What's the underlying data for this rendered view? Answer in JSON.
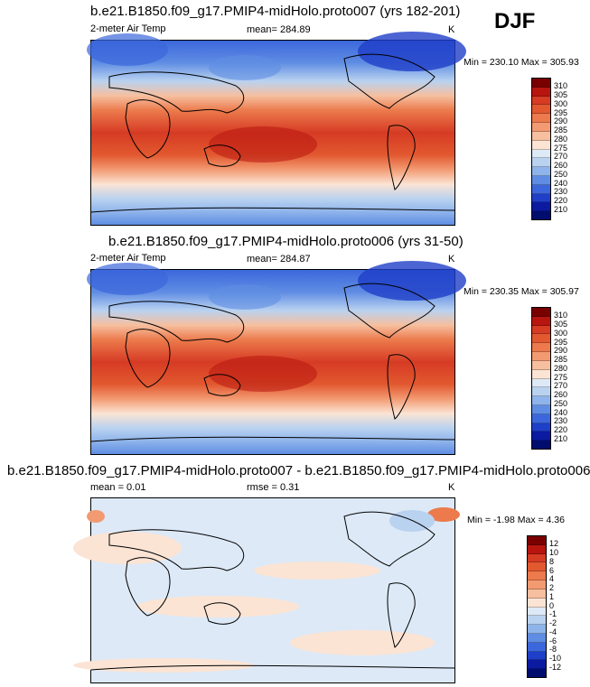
{
  "season": "DJF",
  "panels": [
    {
      "title": "b.e21.B1850.f09_g17.PMIP4-midHolo.proto007 (yrs 182-201)",
      "variable": "2-meter Air Temp",
      "mean_label": "mean= 284.89",
      "units": "K",
      "minmax": "Min = 230.10 Max = 305.93",
      "colorbar_labels": [
        "310",
        "305",
        "300",
        "295",
        "290",
        "285",
        "280",
        "275",
        "270",
        "260",
        "250",
        "240",
        "230",
        "220",
        "210"
      ]
    },
    {
      "title": "b.e21.B1850.f09_g17.PMIP4-midHolo.proto006 (yrs 31-50)",
      "variable": "2-meter Air Temp",
      "mean_label": "mean= 284.87",
      "units": "K",
      "minmax": "Min = 230.35 Max = 305.97",
      "colorbar_labels": [
        "310",
        "305",
        "300",
        "295",
        "290",
        "285",
        "280",
        "275",
        "270",
        "260",
        "250",
        "240",
        "230",
        "220",
        "210"
      ]
    },
    {
      "title": "b.e21.B1850.f09_g17.PMIP4-midHolo.proto007 - b.e21.B1850.f09_g17.PMIP4-midHolo.proto006",
      "mean_label": "mean =   0.01",
      "rmse_label": "rmse =   0.31",
      "units": "K",
      "minmax": "Min =  -1.98 Max =   4.36",
      "colorbar_labels": [
        "12",
        "10",
        "8",
        "6",
        "4",
        "2",
        "1",
        "0",
        "-1",
        "-2",
        "-4",
        "-6",
        "-8",
        "-10",
        "-12"
      ]
    }
  ],
  "colors": {
    "abs_scale": [
      "#7a0000",
      "#b8150f",
      "#d63b24",
      "#e2582f",
      "#ec7a4c",
      "#f29a72",
      "#f6bf9f",
      "#fbe4d4",
      "#dde9f7",
      "#b9d2f0",
      "#8fb4eb",
      "#5f8de3",
      "#3c67dc",
      "#1f3fc8",
      "#0b1aa0",
      "#000c6e"
    ],
    "diff_scale": [
      "#7a0000",
      "#b8150f",
      "#d63b24",
      "#e2582f",
      "#ec7a4c",
      "#f29a72",
      "#f6bf9f",
      "#fbe4d4",
      "#dde9f7",
      "#b9d2f0",
      "#8fb4eb",
      "#5f8de3",
      "#3c67dc",
      "#1f3fc8",
      "#0b1aa0",
      "#000c6e"
    ]
  }
}
